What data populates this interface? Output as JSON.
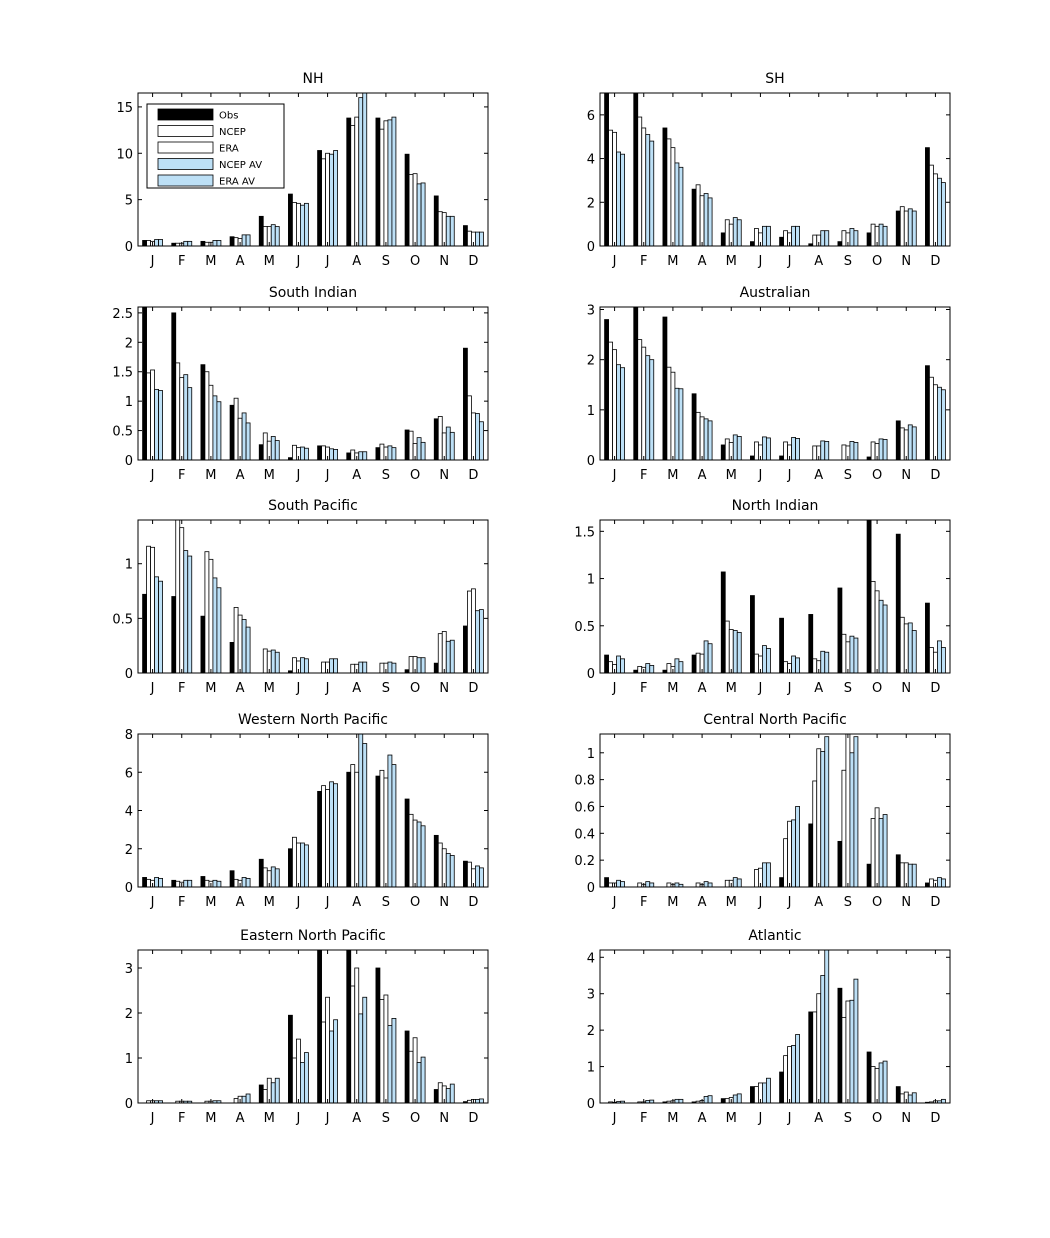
{
  "figure": {
    "series_names": [
      "Obs",
      "NCEP",
      "ERA",
      "NCEP AV",
      "ERA AV"
    ],
    "series_colors": [
      "#000000",
      "#ffffff",
      "#ffffff",
      "#bde0f6",
      "#bde0f6"
    ]
  },
  "chart_data": [
    {
      "type": "bar",
      "title": "NH",
      "categories": [
        "J",
        "F",
        "M",
        "A",
        "M",
        "J",
        "J",
        "A",
        "S",
        "O",
        "N",
        "D"
      ],
      "ylim": [
        0,
        16.5
      ],
      "yticks": [
        0,
        5,
        10,
        15
      ],
      "legend": "top-left",
      "series": [
        {
          "name": "Obs",
          "values": [
            0.6,
            0.3,
            0.5,
            1.0,
            3.2,
            5.6,
            10.3,
            13.8,
            13.8,
            9.9,
            5.4,
            2.2
          ]
        },
        {
          "name": "NCEP",
          "values": [
            0.6,
            0.3,
            0.4,
            0.9,
            2.1,
            4.7,
            9.4,
            13.0,
            12.6,
            7.7,
            3.7,
            1.6
          ]
        },
        {
          "name": "ERA",
          "values": [
            0.5,
            0.3,
            0.4,
            0.8,
            2.1,
            4.6,
            10.0,
            13.9,
            13.5,
            7.8,
            3.6,
            1.5
          ]
        },
        {
          "name": "NCEP AV",
          "values": [
            0.7,
            0.5,
            0.6,
            1.2,
            2.3,
            4.4,
            9.9,
            16.0,
            13.6,
            6.7,
            3.2,
            1.5
          ]
        },
        {
          "name": "ERA AV",
          "values": [
            0.7,
            0.5,
            0.6,
            1.2,
            2.1,
            4.6,
            10.3,
            16.5,
            13.9,
            6.8,
            3.2,
            1.5
          ]
        }
      ]
    },
    {
      "type": "bar",
      "title": "SH",
      "categories": [
        "J",
        "F",
        "M",
        "A",
        "M",
        "J",
        "J",
        "A",
        "S",
        "O",
        "N",
        "D"
      ],
      "ylim": [
        0,
        7
      ],
      "yticks": [
        0,
        2,
        4,
        6
      ],
      "series": [
        {
          "name": "Obs",
          "values": [
            7.0,
            7.0,
            5.4,
            2.6,
            0.6,
            0.2,
            0.4,
            0.1,
            0.2,
            0.6,
            1.6,
            4.5
          ]
        },
        {
          "name": "NCEP",
          "values": [
            5.3,
            5.9,
            4.9,
            2.8,
            1.2,
            0.8,
            0.7,
            0.5,
            0.7,
            1.0,
            1.8,
            3.7
          ]
        },
        {
          "name": "ERA",
          "values": [
            5.2,
            5.4,
            4.5,
            2.3,
            1.0,
            0.6,
            0.6,
            0.5,
            0.6,
            0.9,
            1.6,
            3.3
          ]
        },
        {
          "name": "NCEP AV",
          "values": [
            4.3,
            5.1,
            3.8,
            2.4,
            1.3,
            0.9,
            0.9,
            0.7,
            0.8,
            1.0,
            1.7,
            3.1
          ]
        },
        {
          "name": "ERA AV",
          "values": [
            4.2,
            4.8,
            3.6,
            2.2,
            1.2,
            0.9,
            0.9,
            0.7,
            0.7,
            0.9,
            1.6,
            2.9
          ]
        }
      ]
    },
    {
      "type": "bar",
      "title": "South Indian",
      "categories": [
        "J",
        "F",
        "M",
        "A",
        "M",
        "J",
        "J",
        "A",
        "S",
        "O",
        "N",
        "D"
      ],
      "ylim": [
        0,
        2.6
      ],
      "yticks": [
        0,
        0.5,
        1,
        1.5,
        2,
        2.5
      ],
      "series": [
        {
          "name": "Obs",
          "values": [
            2.6,
            2.5,
            1.62,
            0.93,
            0.26,
            0.04,
            0.24,
            0.12,
            0.21,
            0.51,
            0.7,
            1.9
          ]
        },
        {
          "name": "NCEP",
          "values": [
            1.48,
            1.65,
            1.5,
            1.05,
            0.46,
            0.25,
            0.24,
            0.17,
            0.27,
            0.49,
            0.74,
            1.09
          ]
        },
        {
          "name": "ERA",
          "values": [
            1.53,
            1.4,
            1.27,
            0.71,
            0.32,
            0.21,
            0.22,
            0.12,
            0.22,
            0.28,
            0.46,
            0.8
          ]
        },
        {
          "name": "NCEP AV",
          "values": [
            1.2,
            1.45,
            1.09,
            0.8,
            0.4,
            0.22,
            0.19,
            0.14,
            0.24,
            0.38,
            0.56,
            0.79
          ]
        },
        {
          "name": "ERA AV",
          "values": [
            1.18,
            1.23,
            0.99,
            0.63,
            0.33,
            0.2,
            0.18,
            0.14,
            0.21,
            0.3,
            0.47,
            0.65
          ]
        }
      ]
    },
    {
      "type": "bar",
      "title": "Australian",
      "categories": [
        "J",
        "F",
        "M",
        "A",
        "M",
        "J",
        "J",
        "A",
        "S",
        "O",
        "N",
        "D"
      ],
      "ylim": [
        0,
        3.05
      ],
      "yticks": [
        0,
        1,
        2,
        3
      ],
      "series": [
        {
          "name": "Obs",
          "values": [
            2.8,
            3.05,
            2.85,
            1.32,
            0.3,
            0.08,
            0.08,
            0.0,
            0.0,
            0.06,
            0.78,
            1.88
          ]
        },
        {
          "name": "NCEP",
          "values": [
            2.35,
            2.4,
            1.85,
            0.95,
            0.42,
            0.36,
            0.36,
            0.28,
            0.3,
            0.36,
            0.64,
            1.65
          ]
        },
        {
          "name": "ERA",
          "values": [
            2.2,
            2.25,
            1.75,
            0.86,
            0.35,
            0.3,
            0.3,
            0.28,
            0.28,
            0.33,
            0.6,
            1.5
          ]
        },
        {
          "name": "NCEP AV",
          "values": [
            1.9,
            2.08,
            1.43,
            0.82,
            0.5,
            0.46,
            0.45,
            0.38,
            0.37,
            0.42,
            0.7,
            1.45
          ]
        },
        {
          "name": "ERA AV",
          "values": [
            1.84,
            2.0,
            1.42,
            0.78,
            0.47,
            0.44,
            0.43,
            0.37,
            0.35,
            0.41,
            0.66,
            1.4
          ]
        }
      ]
    },
    {
      "type": "bar",
      "title": "South Pacific",
      "categories": [
        "J",
        "F",
        "M",
        "A",
        "M",
        "J",
        "J",
        "A",
        "S",
        "O",
        "N",
        "D"
      ],
      "ylim": [
        0,
        1.4
      ],
      "yticks": [
        0,
        0.5,
        1
      ],
      "series": [
        {
          "name": "Obs",
          "values": [
            0.72,
            0.7,
            0.52,
            0.28,
            0.0,
            0.02,
            0.0,
            0.0,
            0.0,
            0.03,
            0.09,
            0.43
          ]
        },
        {
          "name": "NCEP",
          "values": [
            1.16,
            1.4,
            1.11,
            0.6,
            0.22,
            0.14,
            0.1,
            0.08,
            0.09,
            0.15,
            0.36,
            0.75
          ]
        },
        {
          "name": "ERA",
          "values": [
            1.15,
            1.33,
            1.04,
            0.53,
            0.2,
            0.11,
            0.1,
            0.08,
            0.09,
            0.15,
            0.38,
            0.77
          ]
        },
        {
          "name": "NCEP AV",
          "values": [
            0.88,
            1.12,
            0.87,
            0.49,
            0.21,
            0.14,
            0.13,
            0.1,
            0.1,
            0.14,
            0.29,
            0.57
          ]
        },
        {
          "name": "ERA AV",
          "values": [
            0.84,
            1.07,
            0.78,
            0.42,
            0.19,
            0.13,
            0.13,
            0.1,
            0.09,
            0.14,
            0.3,
            0.58
          ]
        }
      ]
    },
    {
      "type": "bar",
      "title": "North Indian",
      "categories": [
        "J",
        "F",
        "M",
        "A",
        "M",
        "J",
        "J",
        "A",
        "S",
        "O",
        "N",
        "D"
      ],
      "ylim": [
        0,
        1.62
      ],
      "yticks": [
        0,
        0.5,
        1,
        1.5
      ],
      "series": [
        {
          "name": "Obs",
          "values": [
            0.19,
            0.03,
            0.03,
            0.19,
            1.07,
            0.82,
            0.58,
            0.62,
            0.9,
            1.62,
            1.47,
            0.74
          ]
        },
        {
          "name": "NCEP",
          "values": [
            0.12,
            0.07,
            0.1,
            0.21,
            0.55,
            0.2,
            0.12,
            0.15,
            0.41,
            0.97,
            0.59,
            0.27
          ]
        },
        {
          "name": "ERA",
          "values": [
            0.09,
            0.06,
            0.07,
            0.2,
            0.46,
            0.18,
            0.1,
            0.13,
            0.33,
            0.87,
            0.52,
            0.22
          ]
        },
        {
          "name": "NCEP AV",
          "values": [
            0.18,
            0.1,
            0.15,
            0.34,
            0.45,
            0.29,
            0.18,
            0.23,
            0.39,
            0.77,
            0.53,
            0.34
          ]
        },
        {
          "name": "ERA AV",
          "values": [
            0.15,
            0.08,
            0.12,
            0.31,
            0.43,
            0.26,
            0.16,
            0.22,
            0.37,
            0.72,
            0.45,
            0.27
          ]
        }
      ]
    },
    {
      "type": "bar",
      "title": "Western North Pacific",
      "categories": [
        "J",
        "F",
        "M",
        "A",
        "M",
        "J",
        "J",
        "A",
        "S",
        "O",
        "N",
        "D"
      ],
      "ylim": [
        0,
        8
      ],
      "yticks": [
        0,
        2,
        4,
        6,
        8
      ],
      "series": [
        {
          "name": "Obs",
          "values": [
            0.5,
            0.35,
            0.55,
            0.85,
            1.45,
            2.0,
            5.0,
            6.0,
            5.8,
            4.6,
            2.7,
            1.35
          ]
        },
        {
          "name": "NCEP",
          "values": [
            0.4,
            0.3,
            0.35,
            0.4,
            1.0,
            2.6,
            5.3,
            6.4,
            6.1,
            3.8,
            2.3,
            1.3
          ]
        },
        {
          "name": "ERA",
          "values": [
            0.35,
            0.25,
            0.3,
            0.35,
            0.85,
            2.3,
            5.1,
            6.0,
            5.7,
            3.5,
            2.0,
            0.95
          ]
        },
        {
          "name": "NCEP AV",
          "values": [
            0.5,
            0.35,
            0.35,
            0.5,
            1.05,
            2.3,
            5.5,
            8.0,
            6.9,
            3.4,
            1.75,
            1.1
          ]
        },
        {
          "name": "ERA AV",
          "values": [
            0.45,
            0.35,
            0.3,
            0.45,
            0.95,
            2.2,
            5.4,
            7.5,
            6.4,
            3.2,
            1.65,
            1.0
          ]
        }
      ]
    },
    {
      "type": "bar",
      "title": "Central North Pacific",
      "categories": [
        "J",
        "F",
        "M",
        "A",
        "M",
        "J",
        "J",
        "A",
        "S",
        "O",
        "N",
        "D"
      ],
      "ylim": [
        0,
        1.14
      ],
      "yticks": [
        0,
        0.2,
        0.4,
        0.6,
        0.8,
        1
      ],
      "series": [
        {
          "name": "Obs",
          "values": [
            0.07,
            0.0,
            0.0,
            0.0,
            0.0,
            0.0,
            0.07,
            0.47,
            0.34,
            0.17,
            0.24,
            0.03
          ]
        },
        {
          "name": "NCEP",
          "values": [
            0.03,
            0.03,
            0.03,
            0.03,
            0.05,
            0.13,
            0.36,
            0.79,
            0.87,
            0.51,
            0.18,
            0.06
          ]
        },
        {
          "name": "ERA",
          "values": [
            0.03,
            0.02,
            0.02,
            0.02,
            0.05,
            0.14,
            0.49,
            1.03,
            1.14,
            0.59,
            0.18,
            0.05
          ]
        },
        {
          "name": "NCEP AV",
          "values": [
            0.05,
            0.04,
            0.03,
            0.04,
            0.07,
            0.18,
            0.5,
            1.01,
            1.0,
            0.51,
            0.17,
            0.07
          ]
        },
        {
          "name": "ERA AV",
          "values": [
            0.04,
            0.03,
            0.02,
            0.03,
            0.06,
            0.18,
            0.6,
            1.12,
            1.12,
            0.54,
            0.17,
            0.06
          ]
        }
      ]
    },
    {
      "type": "bar",
      "title": "Eastern North Pacific",
      "categories": [
        "J",
        "F",
        "M",
        "A",
        "M",
        "J",
        "J",
        "A",
        "S",
        "O",
        "N",
        "D"
      ],
      "ylim": [
        0,
        3.4
      ],
      "yticks": [
        0,
        1,
        2,
        3
      ],
      "series": [
        {
          "name": "Obs",
          "values": [
            0.0,
            0.0,
            0.0,
            0.0,
            0.4,
            1.95,
            3.4,
            3.4,
            3.0,
            1.6,
            0.3,
            0.03
          ]
        },
        {
          "name": "NCEP",
          "values": [
            0.05,
            0.04,
            0.04,
            0.1,
            0.3,
            1.0,
            1.8,
            2.6,
            2.3,
            1.15,
            0.45,
            0.06
          ]
        },
        {
          "name": "ERA",
          "values": [
            0.05,
            0.04,
            0.04,
            0.15,
            0.55,
            1.42,
            2.35,
            3.0,
            2.4,
            1.45,
            0.38,
            0.08
          ]
        },
        {
          "name": "NCEP AV",
          "values": [
            0.05,
            0.04,
            0.05,
            0.15,
            0.45,
            0.9,
            1.6,
            1.98,
            1.72,
            0.9,
            0.32,
            0.08
          ]
        },
        {
          "name": "ERA AV",
          "values": [
            0.05,
            0.04,
            0.05,
            0.2,
            0.55,
            1.12,
            1.85,
            2.35,
            1.88,
            1.02,
            0.42,
            0.09
          ]
        }
      ]
    },
    {
      "type": "bar",
      "title": "Atlantic",
      "categories": [
        "J",
        "F",
        "M",
        "A",
        "M",
        "J",
        "J",
        "A",
        "S",
        "O",
        "N",
        "D"
      ],
      "ylim": [
        0,
        4.2
      ],
      "yticks": [
        0,
        1,
        2,
        3,
        4
      ],
      "series": [
        {
          "name": "Obs",
          "values": [
            0.0,
            0.0,
            0.03,
            0.03,
            0.12,
            0.45,
            0.85,
            2.5,
            3.15,
            1.4,
            0.45,
            0.02
          ]
        },
        {
          "name": "NCEP",
          "values": [
            0.03,
            0.03,
            0.05,
            0.05,
            0.12,
            0.45,
            1.3,
            2.5,
            2.35,
            1.0,
            0.25,
            0.03
          ]
        },
        {
          "name": "ERA",
          "values": [
            0.02,
            0.03,
            0.06,
            0.07,
            0.15,
            0.55,
            1.55,
            3.0,
            2.8,
            0.95,
            0.3,
            0.06
          ]
        },
        {
          "name": "NCEP AV",
          "values": [
            0.04,
            0.07,
            0.1,
            0.18,
            0.22,
            0.55,
            1.58,
            3.5,
            2.82,
            1.1,
            0.22,
            0.06
          ]
        },
        {
          "name": "ERA AV",
          "values": [
            0.05,
            0.08,
            0.1,
            0.2,
            0.25,
            0.68,
            1.88,
            4.2,
            3.4,
            1.15,
            0.28,
            0.1
          ]
        }
      ]
    }
  ]
}
